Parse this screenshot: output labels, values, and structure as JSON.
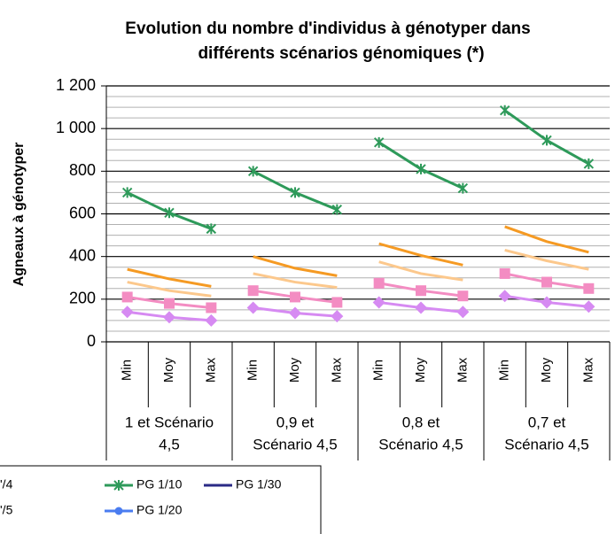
{
  "chart_data": {
    "type": "line",
    "title": [
      "Evolution du nombre d'individus à génotyper dans",
      "différents scénarios génomiques (*)"
    ],
    "y_label": "Agneaux à génotyper",
    "categories": [
      "Min",
      "Moy",
      "Max",
      "Min",
      "Moy",
      "Max",
      "Min",
      "Moy",
      "Max",
      "Min",
      "Moy",
      "Max"
    ],
    "groups": [
      [
        "1 et Scénario",
        "4,5"
      ],
      [
        "0,9 et",
        "Scénario 4,5"
      ],
      [
        "0,8 et",
        "Scénario 4,5"
      ],
      [
        "0,7 et",
        "Scénario 4,5"
      ]
    ],
    "ylim": [
      0,
      1200
    ],
    "yticks": [
      0,
      200,
      400,
      600,
      800,
      {
        "value": 1000,
        "label": "1 000"
      },
      {
        "value": 1200,
        "label": "1 200"
      }
    ],
    "minor_yticks": [
      50,
      100,
      150,
      250,
      300,
      350,
      450,
      500,
      550,
      650,
      700,
      750,
      850,
      900,
      950,
      1050,
      1100,
      1150
    ],
    "grid": true,
    "series": [
      {
        "name": "PG 1/10",
        "color": "#2e9a5a",
        "marker": "star",
        "values": [
          700,
          605,
          530,
          800,
          700,
          620,
          935,
          810,
          720,
          1085,
          945,
          835
        ]
      },
      {
        "color": "#f59a23",
        "marker": "none",
        "values": [
          340,
          295,
          260,
          400,
          345,
          310,
          460,
          405,
          360,
          540,
          470,
          420
        ]
      },
      {
        "color": "#fcc88c",
        "marker": "none",
        "values": [
          280,
          240,
          215,
          320,
          280,
          255,
          375,
          320,
          290,
          430,
          380,
          340
        ]
      },
      {
        "color": "#f38cc2",
        "marker": "square",
        "values": [
          210,
          180,
          160,
          240,
          210,
          185,
          275,
          240,
          215,
          320,
          280,
          250
        ]
      },
      {
        "color": "#d68af2",
        "marker": "diamond",
        "values": [
          140,
          115,
          100,
          160,
          135,
          120,
          185,
          160,
          140,
          215,
          185,
          165
        ]
      },
      {
        "name": "PG 1/20",
        "color": "#4a7cf0",
        "marker": "circle",
        "values": [
          null,
          null,
          null,
          null,
          null,
          null,
          null,
          null,
          null,
          null,
          null,
          null
        ]
      },
      {
        "name": "PG 1/30",
        "color": "#2a2a86",
        "marker": "none",
        "values": [
          null,
          null,
          null,
          null,
          null,
          null,
          null,
          null,
          null,
          null,
          null,
          null
        ]
      }
    ],
    "legend_cropped": [
      "'/4",
      "'/5"
    ]
  }
}
